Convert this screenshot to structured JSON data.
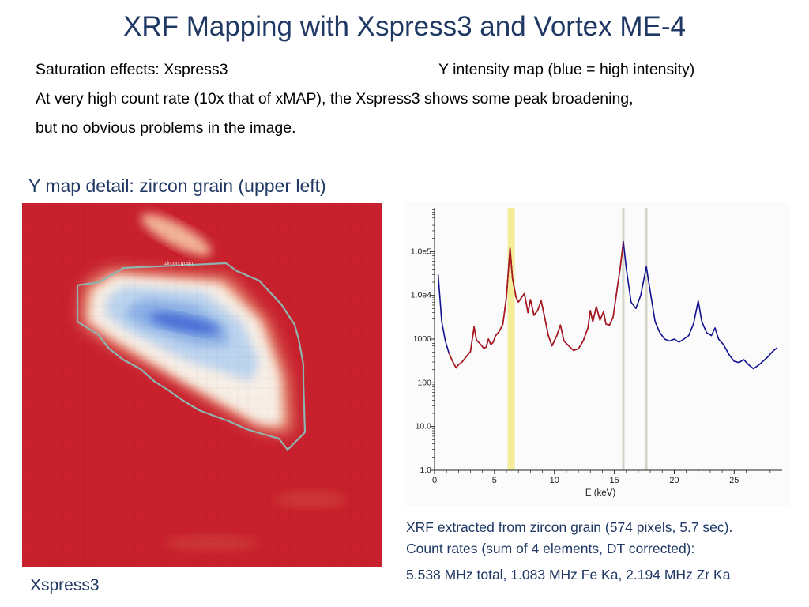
{
  "slide": {
    "title": "XRF Mapping with Xspress3 and Vortex ME-4",
    "line1_left": "Saturation effects: Xspress3",
    "line1_right": "Y intensity map (blue = high intensity)",
    "line2": "At very high count rate (10x that of xMAP), the Xspress3 shows some peak broadening,",
    "line3": "but no obvious problems in the image.",
    "map_heading": "Y map detail: zircon grain (upper left)",
    "map_caption": "Xspress3",
    "map_annotation": "zircon grain",
    "caption_line1": "XRF extracted from zircon grain (574 pixels, 5.7 sec).",
    "caption_line2": "Count rates (sum of 4 elements, DT corrected):",
    "caption_line3": "5.538 MHz total,  1.083 MHz Fe Ka, 2.194 MHz Zr Ka"
  },
  "colors": {
    "title_text": "#1f3864",
    "map_background": "#c8202c",
    "grain_outline": "#8fb5b0",
    "spectrum_fit": "#b01818",
    "spectrum_data": "#101090",
    "roi_highlight": "#f5ec9a",
    "marker_lines": "#d4d4c8"
  },
  "chart_data": {
    "type": "line",
    "xlabel": "E (keV)",
    "ylabel": "",
    "xlim": [
      0,
      29
    ],
    "ylim": [
      1,
      1000000
    ],
    "yscale": "log",
    "x_ticks": [
      0,
      5,
      10,
      15,
      20,
      25
    ],
    "y_ticks": [
      {
        "value": 1,
        "label": "1.0"
      },
      {
        "value": 10,
        "label": "10.0"
      },
      {
        "value": 100,
        "label": "100"
      },
      {
        "value": 1000,
        "label": "1000"
      },
      {
        "value": 10000,
        "label": "1.0e4"
      },
      {
        "value": 100000,
        "label": "1.0e5"
      }
    ],
    "roi_band": {
      "x_start": 6.1,
      "x_end": 6.7
    },
    "markers": [
      15.75,
      17.67
    ],
    "fit_range": [
      1.1,
      15.9
    ],
    "spectrum": [
      [
        0.3,
        30000
      ],
      [
        0.6,
        2500
      ],
      [
        0.9,
        900
      ],
      [
        1.2,
        480
      ],
      [
        1.5,
        310
      ],
      [
        1.8,
        220
      ],
      [
        2.0,
        260
      ],
      [
        2.3,
        300
      ],
      [
        2.6,
        380
      ],
      [
        3.0,
        520
      ],
      [
        3.3,
        1900
      ],
      [
        3.5,
        950
      ],
      [
        3.8,
        780
      ],
      [
        4.1,
        620
      ],
      [
        4.3,
        650
      ],
      [
        4.5,
        1000
      ],
      [
        4.7,
        750
      ],
      [
        4.9,
        850
      ],
      [
        5.1,
        1200
      ],
      [
        5.4,
        1500
      ],
      [
        5.7,
        2200
      ],
      [
        6.0,
        9000
      ],
      [
        6.3,
        120000
      ],
      [
        6.5,
        25000
      ],
      [
        6.8,
        9000
      ],
      [
        7.0,
        7000
      ],
      [
        7.2,
        8500
      ],
      [
        7.5,
        11000
      ],
      [
        7.8,
        4000
      ],
      [
        8.0,
        8000
      ],
      [
        8.3,
        3500
      ],
      [
        8.6,
        4500
      ],
      [
        8.9,
        7500
      ],
      [
        9.2,
        3000
      ],
      [
        9.5,
        1200
      ],
      [
        9.8,
        700
      ],
      [
        10.2,
        1200
      ],
      [
        10.5,
        2100
      ],
      [
        10.8,
        900
      ],
      [
        11.2,
        700
      ],
      [
        11.6,
        550
      ],
      [
        12.0,
        600
      ],
      [
        12.4,
        900
      ],
      [
        12.8,
        1800
      ],
      [
        13.0,
        4500
      ],
      [
        13.2,
        2500
      ],
      [
        13.5,
        5500
      ],
      [
        13.8,
        2700
      ],
      [
        14.1,
        4200
      ],
      [
        14.3,
        2200
      ],
      [
        14.6,
        2100
      ],
      [
        14.9,
        3200
      ],
      [
        15.2,
        12000
      ],
      [
        15.5,
        45000
      ],
      [
        15.75,
        170000
      ],
      [
        16.0,
        40000
      ],
      [
        16.4,
        7000
      ],
      [
        16.8,
        5000
      ],
      [
        17.2,
        10000
      ],
      [
        17.67,
        45000
      ],
      [
        18.0,
        12000
      ],
      [
        18.4,
        2500
      ],
      [
        18.8,
        1400
      ],
      [
        19.2,
        1000
      ],
      [
        19.6,
        900
      ],
      [
        20.0,
        1000
      ],
      [
        20.4,
        850
      ],
      [
        20.8,
        1000
      ],
      [
        21.2,
        1200
      ],
      [
        21.6,
        2200
      ],
      [
        22.0,
        7500
      ],
      [
        22.3,
        2500
      ],
      [
        22.7,
        1400
      ],
      [
        23.1,
        1200
      ],
      [
        23.4,
        1800
      ],
      [
        23.7,
        1000
      ],
      [
        24.1,
        750
      ],
      [
        24.6,
        430
      ],
      [
        25.0,
        310
      ],
      [
        25.4,
        290
      ],
      [
        25.8,
        340
      ],
      [
        26.2,
        260
      ],
      [
        26.6,
        210
      ],
      [
        27.0,
        250
      ],
      [
        27.4,
        310
      ],
      [
        27.8,
        390
      ],
      [
        28.2,
        520
      ],
      [
        28.6,
        640
      ]
    ]
  }
}
